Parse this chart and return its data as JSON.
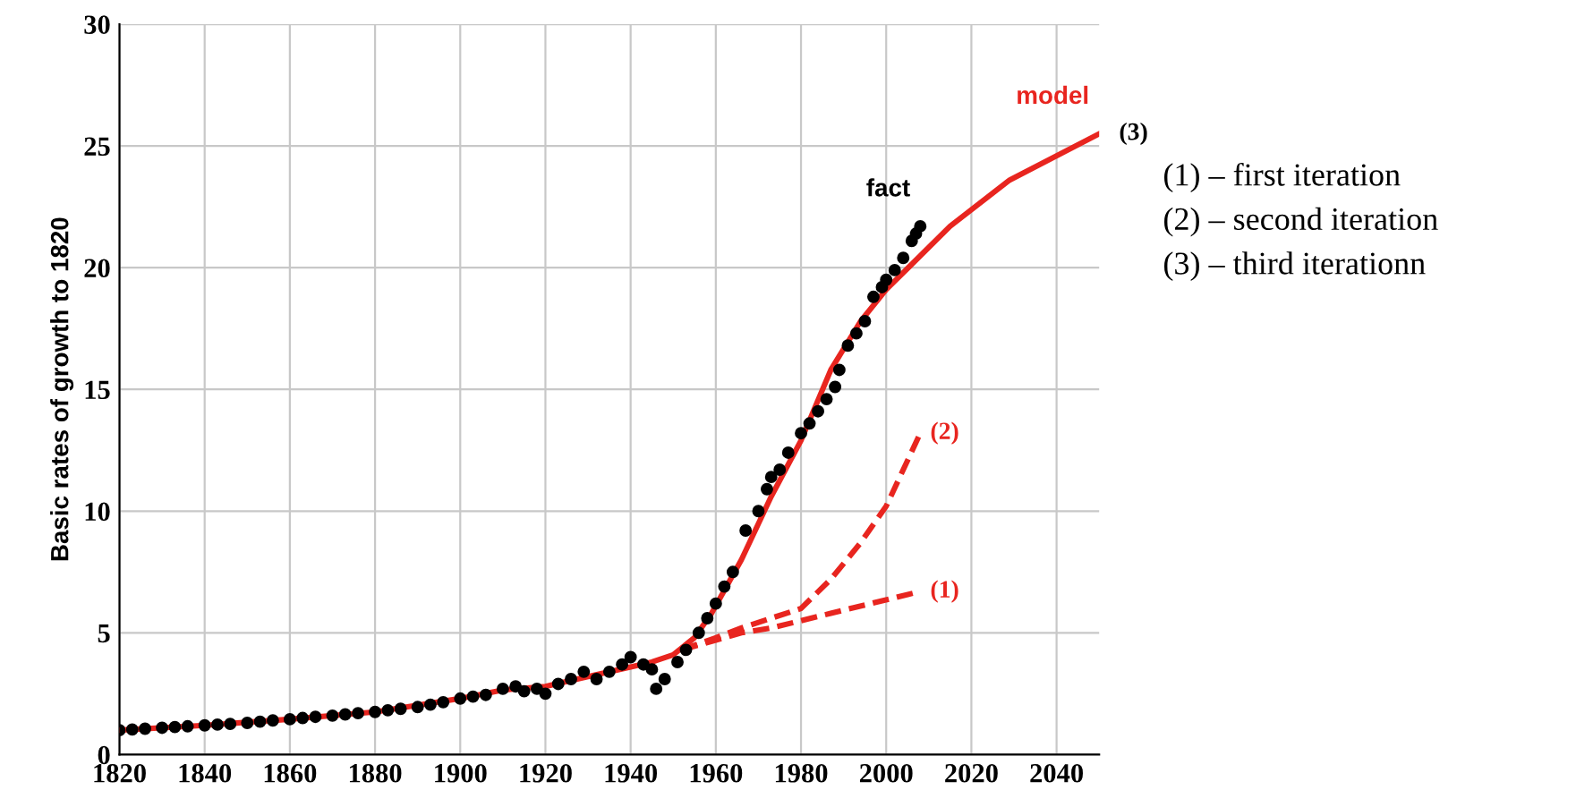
{
  "chart_data": {
    "type": "line",
    "ylabel": "Basic rates of growth to 1820",
    "xlim": [
      1820,
      2050
    ],
    "xticks": [
      1820,
      1840,
      1860,
      1880,
      1900,
      1920,
      1940,
      1960,
      1980,
      2000,
      2020,
      2040
    ],
    "ylim": [
      0,
      30
    ],
    "yticks": [
      0,
      5,
      10,
      15,
      20,
      25,
      30
    ],
    "grid": true,
    "series": [
      {
        "name": "model",
        "color": "#e8251f",
        "line_style": "solid",
        "x": [
          1820,
          1840,
          1860,
          1880,
          1900,
          1910,
          1920,
          1930,
          1940,
          1945,
          1950,
          1955,
          1959,
          1966,
          1973,
          1980,
          1987,
          1994,
          2000,
          2015,
          2029,
          2050
        ],
        "values": [
          1.0,
          1.2,
          1.45,
          1.75,
          2.3,
          2.65,
          2.8,
          3.2,
          3.6,
          3.8,
          4.1,
          4.8,
          5.8,
          8.0,
          10.6,
          12.9,
          15.8,
          17.8,
          19.1,
          21.7,
          23.6,
          25.5
        ]
      },
      {
        "name": "(1)",
        "color": "#e8251f",
        "line_style": "dashed",
        "x": [
          1952,
          1960,
          1966,
          1973,
          1987,
          2008
        ],
        "values": [
          4.3,
          4.7,
          5.0,
          5.2,
          5.8,
          6.7
        ]
      },
      {
        "name": "(2)",
        "color": "#e8251f",
        "line_style": "dashed",
        "x": [
          1952,
          1960,
          1966,
          1973,
          1980,
          1987,
          1994,
          2000,
          2004,
          2008
        ],
        "values": [
          4.3,
          4.8,
          5.2,
          5.6,
          6.0,
          7.2,
          8.7,
          10.2,
          11.7,
          13.2
        ]
      },
      {
        "name": "fact",
        "type": "scatter",
        "color": "#000000",
        "marker": "circle",
        "x": [
          1820,
          1823,
          1826,
          1830,
          1833,
          1836,
          1840,
          1843,
          1846,
          1850,
          1853,
          1856,
          1860,
          1863,
          1866,
          1870,
          1873,
          1876,
          1880,
          1883,
          1886,
          1890,
          1893,
          1896,
          1900,
          1903,
          1906,
          1910,
          1913,
          1915,
          1918,
          1920,
          1923,
          1926,
          1929,
          1932,
          1935,
          1938,
          1940,
          1943,
          1945,
          1946,
          1948,
          1951,
          1953,
          1956,
          1958,
          1960,
          1962,
          1964,
          1967,
          1970,
          1972,
          1973,
          1975,
          1977,
          1980,
          1982,
          1984,
          1986,
          1988,
          1989,
          1991,
          1993,
          1995,
          1997,
          1999,
          2000,
          2002,
          2004,
          2006,
          2007,
          2008
        ],
        "values": [
          1.0,
          1.03,
          1.06,
          1.1,
          1.13,
          1.16,
          1.2,
          1.23,
          1.26,
          1.3,
          1.35,
          1.4,
          1.45,
          1.5,
          1.55,
          1.6,
          1.65,
          1.7,
          1.75,
          1.82,
          1.88,
          1.95,
          2.05,
          2.15,
          2.3,
          2.38,
          2.45,
          2.7,
          2.8,
          2.6,
          2.7,
          2.5,
          2.9,
          3.1,
          3.4,
          3.1,
          3.4,
          3.7,
          4.0,
          3.7,
          3.5,
          2.7,
          3.1,
          3.8,
          4.3,
          5.0,
          5.6,
          6.2,
          6.9,
          7.5,
          9.2,
          10.0,
          10.9,
          11.4,
          11.7,
          12.4,
          13.2,
          13.6,
          14.1,
          14.6,
          15.1,
          15.8,
          16.8,
          17.3,
          17.8,
          18.8,
          19.2,
          19.5,
          19.9,
          20.4,
          21.1,
          21.4,
          21.7
        ]
      }
    ],
    "annotations": [
      {
        "text": "(3)",
        "x": 2050,
        "y": 25.5
      },
      "(1) – first iteration",
      "(2) – second iteration",
      "(3) – third iterationn"
    ]
  }
}
